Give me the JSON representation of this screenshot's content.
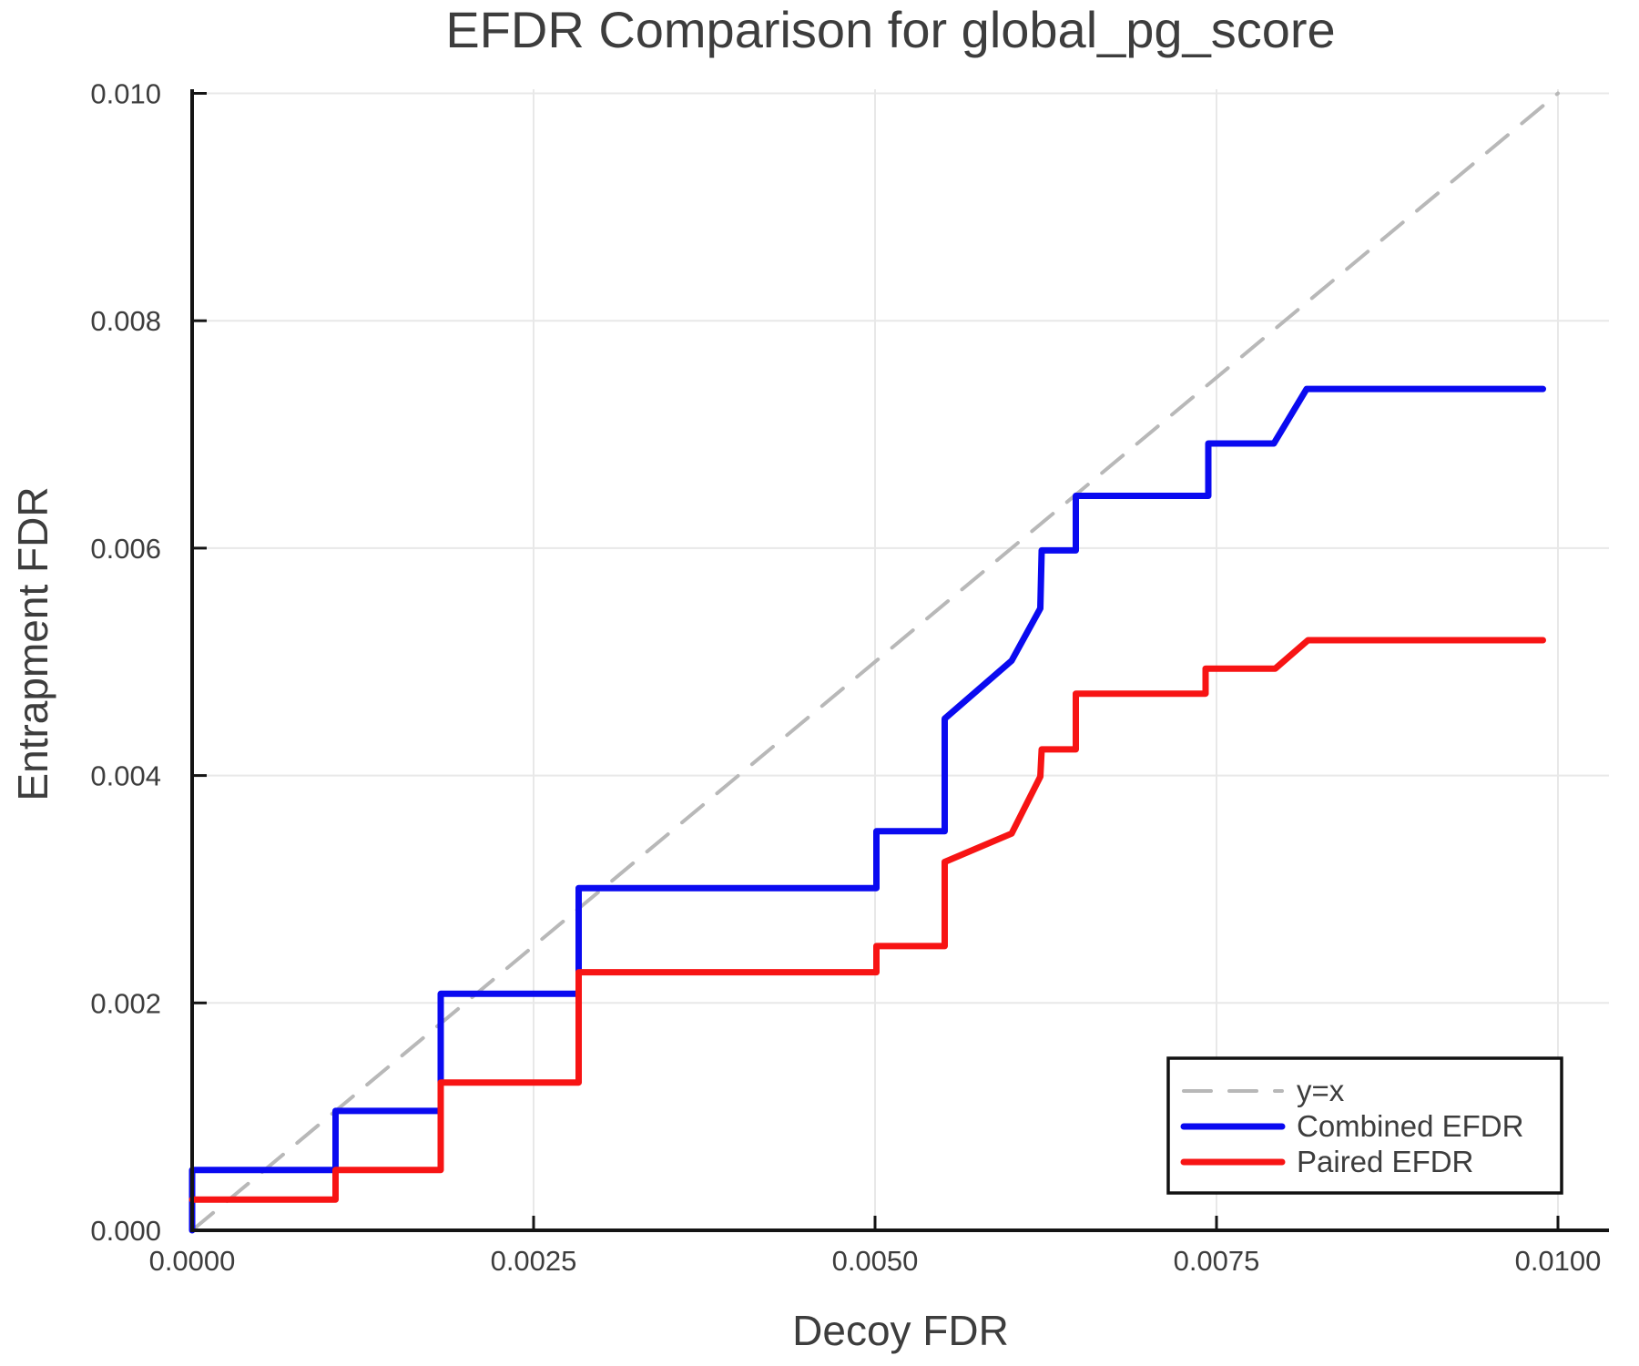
{
  "figure": {
    "title": "EFDR Comparison for global_pg_score",
    "x_axis": {
      "label": "Decoy FDR",
      "tick_labels": [
        "0.0000",
        "0.0025",
        "0.0050",
        "0.0075",
        "0.0100"
      ],
      "tick_values": [
        0,
        0.0025,
        0.005,
        0.0075,
        0.01
      ]
    },
    "y_axis": {
      "label": "Entrapment FDR",
      "tick_labels": [
        "0.000",
        "0.002",
        "0.004",
        "0.006",
        "0.008",
        "0.010"
      ],
      "tick_values": [
        0,
        0.002,
        0.004,
        0.006,
        0.008,
        0.01
      ]
    },
    "legend": {
      "items": [
        {
          "label": "y=x",
          "color": "#b8b8b8",
          "dash": true
        },
        {
          "label": "Combined EFDR",
          "color": "#0a0af0",
          "dash": false
        },
        {
          "label": "Paired EFDR",
          "color": "#f71414",
          "dash": false
        }
      ]
    },
    "colors": {
      "combined": "#0a0af0",
      "paired": "#f71414",
      "identity": "#b8b8b8",
      "grid": "#e8e8e8",
      "axis": "#141414",
      "text": "#3d3d3d",
      "background": "#ffffff"
    }
  },
  "chart_data": {
    "type": "line",
    "title": "EFDR Comparison for global_pg_score",
    "xlabel": "Decoy FDR",
    "ylabel": "Entrapment FDR",
    "xlim": [
      0,
      0.01037
    ],
    "ylim": [
      0,
      0.01004
    ],
    "grid": true,
    "legend_position": "lower right",
    "series": [
      {
        "name": "y=x",
        "style": "dashed",
        "color": "#b8b8b8",
        "points": [
          [
            0,
            0
          ],
          [
            0.01,
            0.01
          ]
        ]
      },
      {
        "name": "Combined EFDR",
        "style": "solid",
        "color": "#0a0af0",
        "points": [
          [
            0,
            0
          ],
          [
            0,
            0.00053
          ],
          [
            0.00105,
            0.00053
          ],
          [
            0.00105,
            0.00105
          ],
          [
            0.00182,
            0.00105
          ],
          [
            0.00182,
            0.00208
          ],
          [
            0.00283,
            0.00208
          ],
          [
            0.00283,
            0.00301
          ],
          [
            0.00501,
            0.00301
          ],
          [
            0.00501,
            0.00351
          ],
          [
            0.00551,
            0.00351
          ],
          [
            0.00551,
            0.0045
          ],
          [
            0.006,
            0.00501
          ],
          [
            0.00621,
            0.00547
          ],
          [
            0.00622,
            0.00598
          ],
          [
            0.00647,
            0.00598
          ],
          [
            0.00647,
            0.00646
          ],
          [
            0.00744,
            0.00646
          ],
          [
            0.00744,
            0.00692
          ],
          [
            0.00792,
            0.00692
          ],
          [
            0.00816,
            0.0074
          ],
          [
            0.00989,
            0.0074
          ]
        ]
      },
      {
        "name": "Paired EFDR",
        "style": "solid",
        "color": "#f71414",
        "points": [
          [
            0,
            0.00027
          ],
          [
            0.00105,
            0.00027
          ],
          [
            0.00105,
            0.00053
          ],
          [
            0.00182,
            0.00053
          ],
          [
            0.00182,
            0.0013
          ],
          [
            0.00283,
            0.0013
          ],
          [
            0.00283,
            0.00227
          ],
          [
            0.00501,
            0.00227
          ],
          [
            0.00501,
            0.0025
          ],
          [
            0.00551,
            0.0025
          ],
          [
            0.00551,
            0.00324
          ],
          [
            0.006,
            0.00349
          ],
          [
            0.00621,
            0.00399
          ],
          [
            0.00622,
            0.00423
          ],
          [
            0.00647,
            0.00423
          ],
          [
            0.00647,
            0.00472
          ],
          [
            0.00742,
            0.00472
          ],
          [
            0.00742,
            0.00494
          ],
          [
            0.00793,
            0.00494
          ],
          [
            0.00817,
            0.00519
          ],
          [
            0.00989,
            0.00519
          ]
        ]
      }
    ]
  }
}
